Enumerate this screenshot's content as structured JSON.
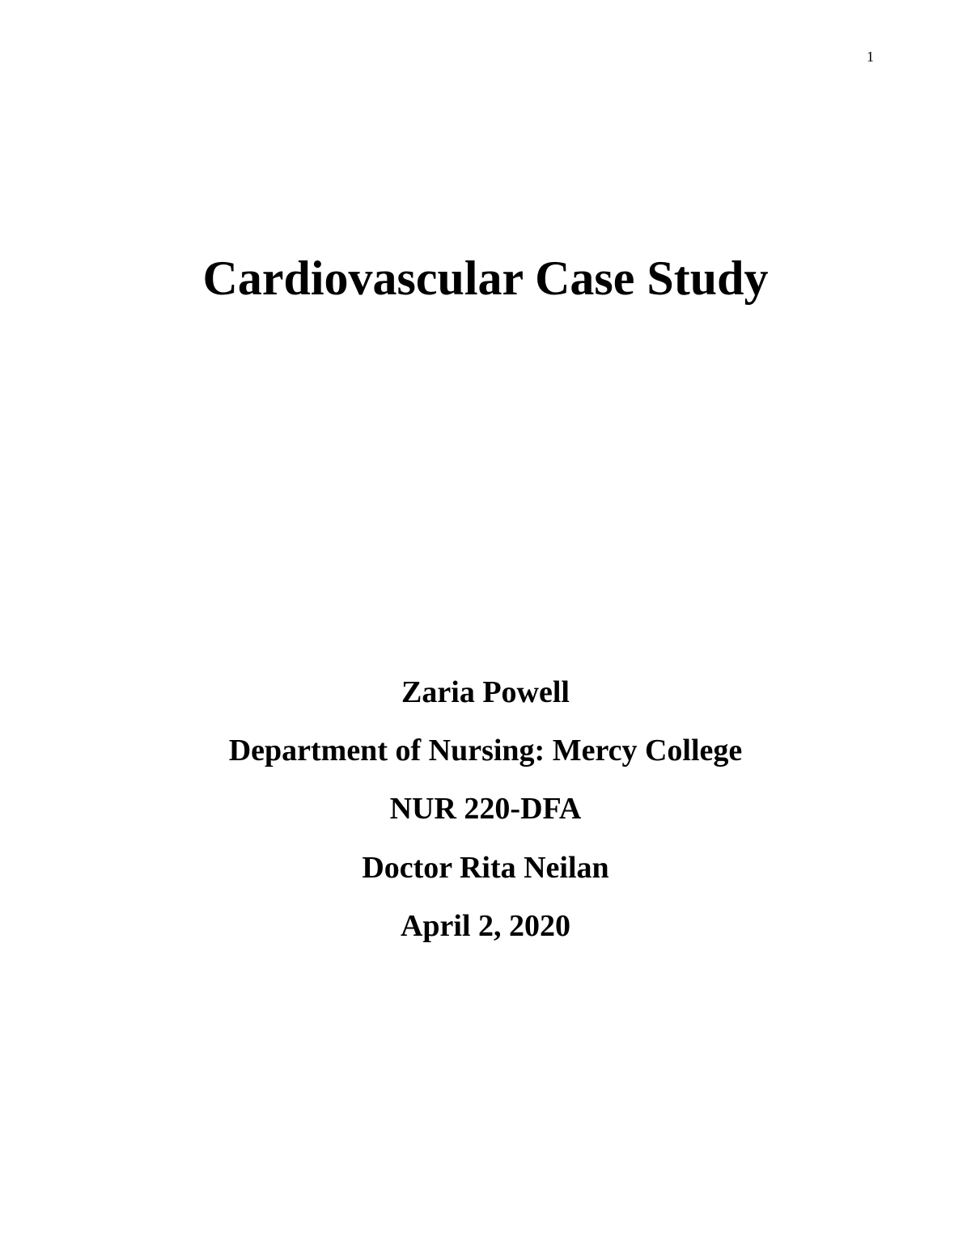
{
  "page": {
    "number": "1",
    "background_color": "#ffffff",
    "text_color": "#000000"
  },
  "document": {
    "title": "Cardiovascular Case Study",
    "author": "Zaria Powell",
    "department": "Department of Nursing: Mercy College",
    "course": "NUR 220-DFA",
    "instructor": "Doctor Rita Neilan",
    "date": "April 2, 2020"
  },
  "styling": {
    "title_fontsize": 60,
    "title_fontweight": "bold",
    "info_fontsize": 38,
    "info_fontweight": "bold",
    "page_number_fontsize": 18,
    "font_family": "Times New Roman"
  }
}
